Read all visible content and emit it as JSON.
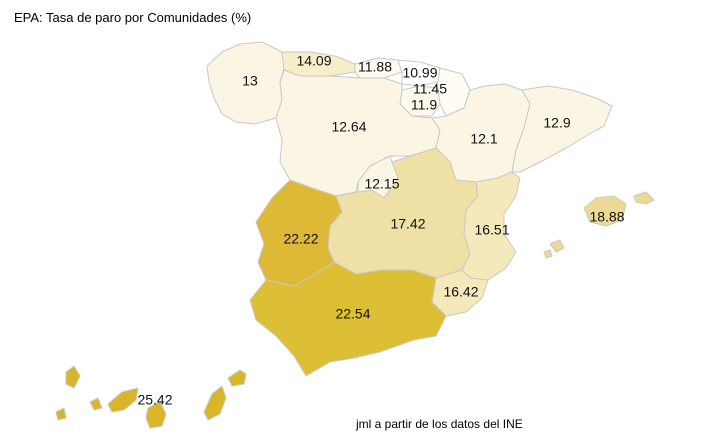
{
  "title": "EPA: Tasa de paro por Comunidades (%)",
  "credit": "jml a partir de los datos del INE",
  "scale_colors": {
    "low": "#fbf6e3",
    "mid_low": "#f6edc9",
    "mid": "#efe0a6",
    "mid_high": "#f4e9bb",
    "high": "#deb945",
    "highest": "#ddb935"
  },
  "regions": [
    {
      "name": "Galicia",
      "value": "13",
      "fill": "#fbf6e3"
    },
    {
      "name": "Asturias",
      "value": "14.09",
      "fill": "#f6edc9"
    },
    {
      "name": "Cantabria",
      "value": "11.88",
      "fill": "#fdf9ec"
    },
    {
      "name": "País Vasco",
      "value": "10.99",
      "fill": "#ffffff"
    },
    {
      "name": "Navarra",
      "value": "11.45",
      "fill": "#fefcf4"
    },
    {
      "name": "La Rioja",
      "value": "11.9",
      "fill": "#fdf9ec"
    },
    {
      "name": "Castilla y León",
      "value": "12.64",
      "fill": "#fbf6e3"
    },
    {
      "name": "Aragón",
      "value": "12.1",
      "fill": "#fbf6e3"
    },
    {
      "name": "Cataluña",
      "value": "12.9",
      "fill": "#fbf6e3"
    },
    {
      "name": "Madrid",
      "value": "12.15",
      "fill": "#fbf6e3"
    },
    {
      "name": "Extremadura",
      "value": "22.22",
      "fill": "#deb935"
    },
    {
      "name": "Castilla-La Mancha",
      "value": "17.42",
      "fill": "#efe0a6"
    },
    {
      "name": "Comunidad Valenciana",
      "value": "16.51",
      "fill": "#f4e9bb"
    },
    {
      "name": "Islas Baleares",
      "value": "18.88",
      "fill": "#ecd993"
    },
    {
      "name": "Murcia",
      "value": "16.42",
      "fill": "#f4e9bb"
    },
    {
      "name": "Andalucía",
      "value": "22.54",
      "fill": "#ddbf35"
    },
    {
      "name": "Canarias",
      "value": "25.42",
      "fill": "#d9b52a"
    }
  ]
}
